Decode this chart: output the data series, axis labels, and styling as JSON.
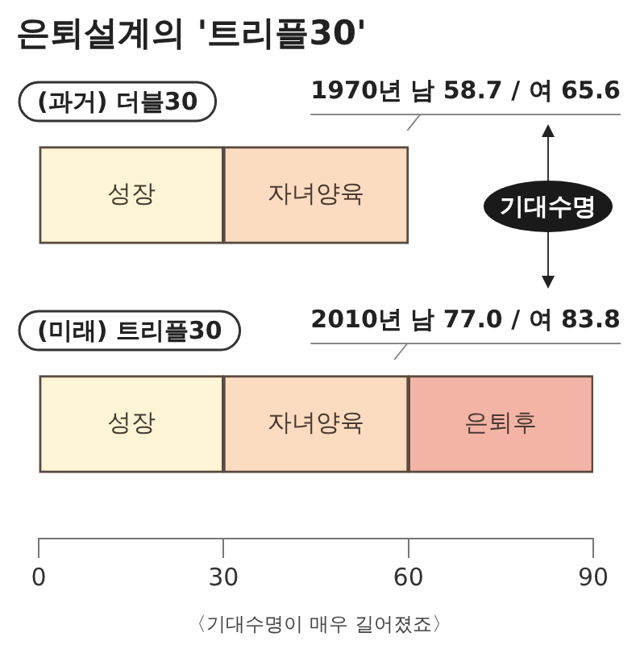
{
  "chart_data": {
    "type": "bar",
    "orientation": "horizontal",
    "stacked": true,
    "title": "은퇴설계의 '트리플30'",
    "categories": [
      "(과거) 더블30",
      "(미래) 트리플30"
    ],
    "series": [
      {
        "name": "성장",
        "color": "#fdf5d5",
        "values": [
          30,
          30
        ]
      },
      {
        "name": "자녀양육",
        "color": "#fbdcc1",
        "values": [
          30,
          30
        ]
      },
      {
        "name": "은퇴후",
        "color": "#f3b4a6",
        "values": [
          null,
          30
        ]
      }
    ],
    "xlim": [
      0,
      90
    ],
    "xticks": [
      0,
      30,
      60,
      90
    ],
    "grid": false,
    "legend": false,
    "annotations": [
      "1970년 남 58.7 / 여 65.6",
      "2010년 남 77.0 / 여 83.8",
      "기대수명",
      "〈기대수명이 매우 길어졌죠〉"
    ]
  }
}
